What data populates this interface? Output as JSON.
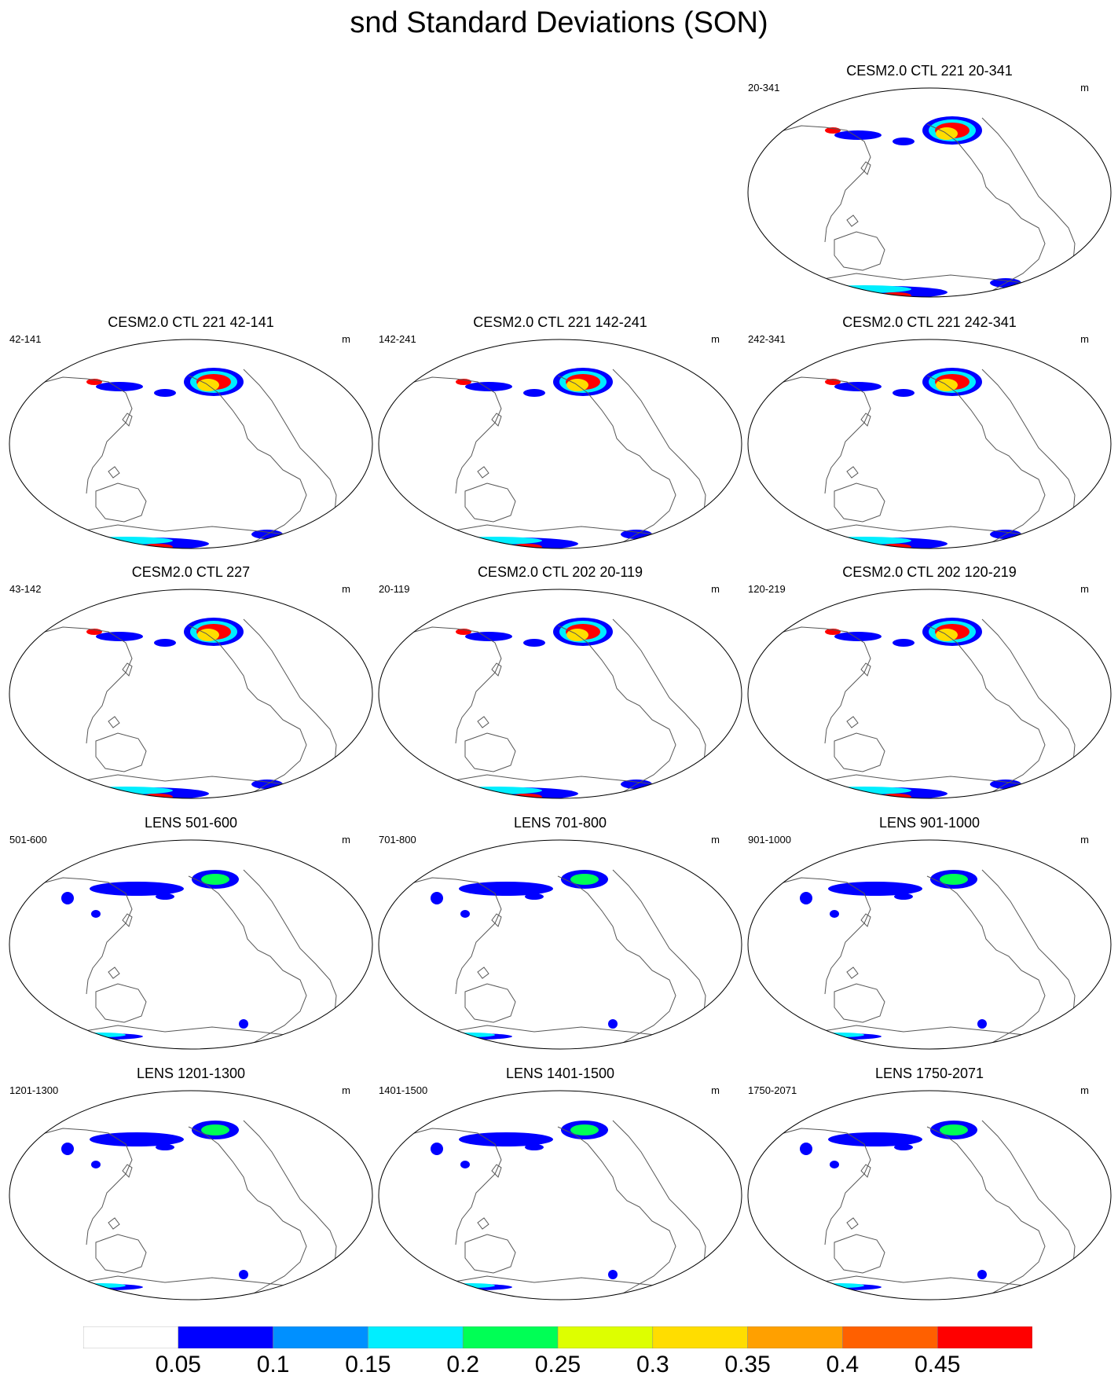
{
  "title": "snd Standard Deviations (SON)",
  "panels": [
    {
      "title": "CESM2.0 CTL 221 20-341",
      "label": "20-341",
      "units": "m",
      "pattern": "ctl"
    },
    {
      "title": "CESM2.0 CTL 221 42-141",
      "label": "42-141",
      "units": "m",
      "pattern": "ctl"
    },
    {
      "title": "CESM2.0 CTL 221 142-241",
      "label": "142-241",
      "units": "m",
      "pattern": "ctl"
    },
    {
      "title": "CESM2.0 CTL 221 242-341",
      "label": "242-341",
      "units": "m",
      "pattern": "ctl"
    },
    {
      "title": "CESM2.0 CTL 227",
      "label": "43-142",
      "units": "m",
      "pattern": "ctl"
    },
    {
      "title": "CESM2.0 CTL 202 20-119",
      "label": "20-119",
      "units": "m",
      "pattern": "ctl"
    },
    {
      "title": "CESM2.0 CTL 202 120-219",
      "label": "120-219",
      "units": "m",
      "pattern": "ctl"
    },
    {
      "title": "LENS 501-600",
      "label": "501-600",
      "units": "m",
      "pattern": "lens"
    },
    {
      "title": "LENS 701-800",
      "label": "701-800",
      "units": "m",
      "pattern": "lens"
    },
    {
      "title": "LENS 901-1000",
      "label": "901-1000",
      "units": "m",
      "pattern": "lens"
    },
    {
      "title": "LENS 1201-1300",
      "label": "1201-1300",
      "units": "m",
      "pattern": "lens"
    },
    {
      "title": "LENS 1401-1500",
      "label": "1401-1500",
      "units": "m",
      "pattern": "lens"
    },
    {
      "title": "LENS 1750-2071",
      "label": "1750-2071",
      "units": "m",
      "pattern": "lens"
    }
  ],
  "colorbar": {
    "colors": [
      "#ffffff",
      "#0000ff",
      "#0090ff",
      "#00eeff",
      "#00ff55",
      "#ddff00",
      "#ffdd00",
      "#ffa000",
      "#ff6000",
      "#ff0000"
    ],
    "labels": [
      "0.05",
      "0.1",
      "0.15",
      "0.2",
      "0.25",
      "0.3",
      "0.35",
      "0.4",
      "0.45"
    ]
  }
}
